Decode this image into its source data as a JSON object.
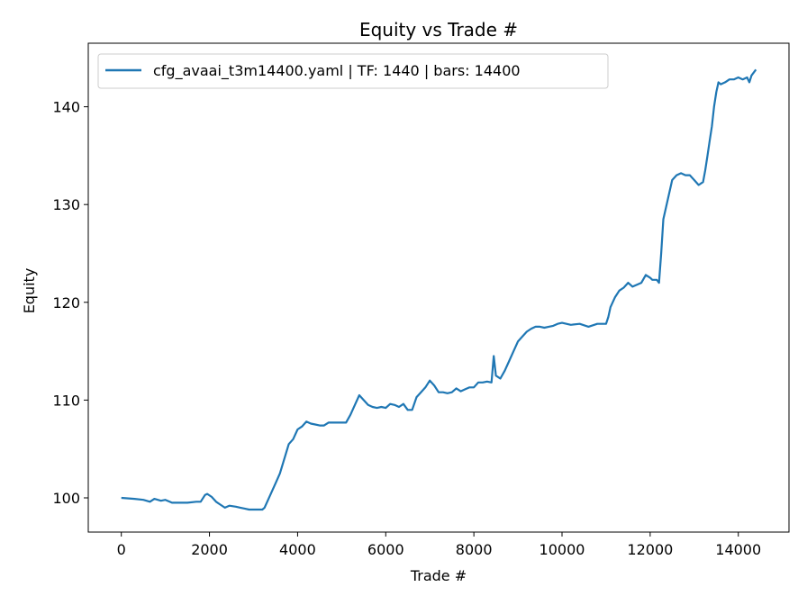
{
  "chart_data": {
    "type": "line",
    "title": "Equity vs Trade #",
    "xlabel": "Trade #",
    "ylabel": "Equity",
    "xlim": [
      -750,
      15150
    ],
    "ylim": [
      96.5,
      146.5
    ],
    "xticks": [
      0,
      2000,
      4000,
      6000,
      8000,
      10000,
      12000,
      14000
    ],
    "yticks": [
      100,
      110,
      120,
      130,
      140
    ],
    "grid": false,
    "legend_placement": "upper-left",
    "series": [
      {
        "name": "cfg_avaai_t3m14400.yaml | TF: 1440 | bars: 14400",
        "color": "#1f77b4",
        "x": [
          0,
          300,
          500,
          650,
          750,
          900,
          1000,
          1150,
          1300,
          1500,
          1700,
          1800,
          1900,
          1950,
          2050,
          2150,
          2250,
          2350,
          2450,
          2600,
          2700,
          2800,
          2900,
          3000,
          3100,
          3200,
          3250,
          3300,
          3400,
          3500,
          3600,
          3700,
          3800,
          3900,
          4000,
          4100,
          4200,
          4300,
          4400,
          4500,
          4600,
          4700,
          4800,
          4900,
          5000,
          5100,
          5200,
          5300,
          5400,
          5500,
          5600,
          5700,
          5800,
          5900,
          6000,
          6100,
          6200,
          6300,
          6400,
          6500,
          6600,
          6700,
          6800,
          6900,
          7000,
          7100,
          7200,
          7300,
          7400,
          7500,
          7600,
          7700,
          7800,
          7900,
          8000,
          8100,
          8200,
          8300,
          8400,
          8450,
          8500,
          8600,
          8700,
          8800,
          8900,
          9000,
          9100,
          9200,
          9300,
          9400,
          9500,
          9600,
          9700,
          9800,
          9900,
          10000,
          10200,
          10400,
          10600,
          10800,
          11000,
          11050,
          11100,
          11200,
          11300,
          11400,
          11500,
          11600,
          11700,
          11800,
          11900,
          12000,
          12050,
          12150,
          12200,
          12250,
          12300,
          12400,
          12500,
          12600,
          12700,
          12800,
          12900,
          13000,
          13100,
          13200,
          13250,
          13300,
          13350,
          13400,
          13450,
          13500,
          13550,
          13600,
          13700,
          13800,
          13900,
          14000,
          14100,
          14200,
          14250,
          14300,
          14400
        ],
        "y": [
          100.0,
          99.9,
          99.8,
          99.6,
          99.9,
          99.7,
          99.8,
          99.5,
          99.5,
          99.5,
          99.6,
          99.6,
          100.3,
          100.4,
          100.1,
          99.6,
          99.3,
          99.0,
          99.2,
          99.1,
          99.0,
          98.9,
          98.8,
          98.8,
          98.8,
          98.8,
          99.0,
          99.5,
          100.5,
          101.5,
          102.5,
          104.0,
          105.5,
          106.0,
          107.0,
          107.3,
          107.8,
          107.6,
          107.5,
          107.4,
          107.4,
          107.7,
          107.7,
          107.7,
          107.7,
          107.7,
          108.5,
          109.5,
          110.5,
          110.0,
          109.5,
          109.3,
          109.2,
          109.3,
          109.2,
          109.6,
          109.5,
          109.3,
          109.6,
          109.0,
          109.0,
          110.3,
          110.8,
          111.3,
          112.0,
          111.5,
          110.8,
          110.8,
          110.7,
          110.8,
          111.2,
          110.9,
          111.1,
          111.3,
          111.3,
          111.8,
          111.8,
          111.9,
          111.8,
          114.5,
          112.5,
          112.2,
          113.0,
          114.0,
          115.0,
          116.0,
          116.5,
          117.0,
          117.3,
          117.5,
          117.5,
          117.4,
          117.5,
          117.6,
          117.8,
          117.9,
          117.7,
          117.8,
          117.5,
          117.8,
          117.8,
          118.5,
          119.5,
          120.5,
          121.2,
          121.5,
          122.0,
          121.6,
          121.8,
          122.0,
          122.8,
          122.5,
          122.3,
          122.3,
          122.0,
          125.0,
          128.5,
          130.5,
          132.5,
          133.0,
          133.2,
          133.0,
          133.0,
          132.5,
          132.0,
          132.3,
          133.5,
          135.0,
          136.5,
          138.0,
          140.0,
          141.5,
          142.5,
          142.3,
          142.5,
          142.8,
          142.8,
          143.0,
          142.8,
          143.0,
          142.5,
          143.2,
          143.8
        ]
      }
    ]
  }
}
